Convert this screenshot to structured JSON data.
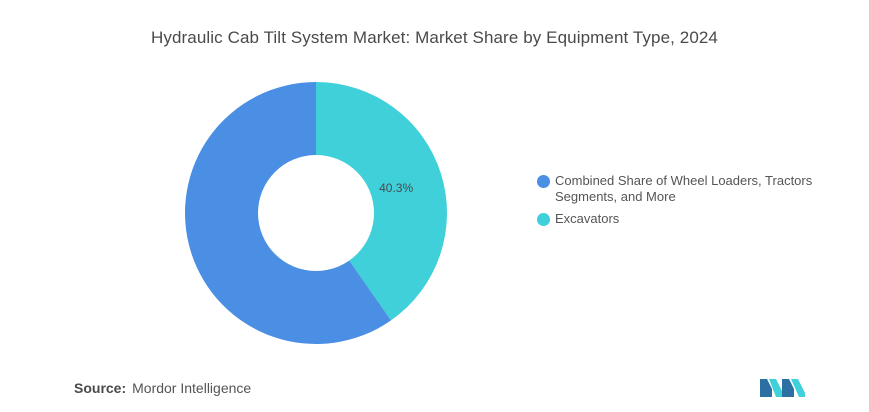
{
  "title": "Hydraulic Cab Tilt System Market: Market Share by Equipment Type, 2024",
  "chart_data": {
    "type": "pie",
    "donut": true,
    "title": "Hydraulic Cab Tilt System Market: Market Share by Equipment Type, 2024",
    "series": [
      {
        "name": "Combined Share of Wheel Loaders, Tractors Segments, and More",
        "value": 59.7,
        "color": "#4a8fe3"
      },
      {
        "name": "Excavators",
        "value": 40.3,
        "color": "#3fd0da"
      }
    ],
    "labels": [
      {
        "series": "Excavators",
        "text": "40.3%"
      }
    ],
    "legend_position": "right"
  },
  "source": {
    "label": "Source:",
    "value": "Mordor Intelligence"
  },
  "logo": {
    "icon": "mordor-intelligence-logo",
    "color": "#2b6fa3",
    "accent": "#3fd0da"
  }
}
